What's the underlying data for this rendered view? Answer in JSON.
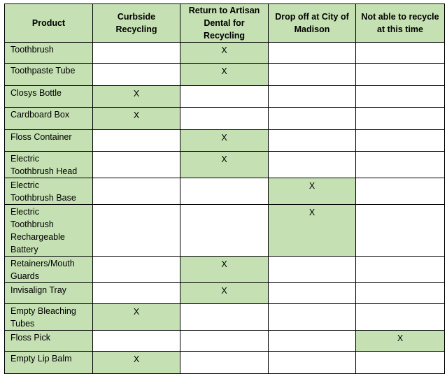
{
  "table": {
    "header": [
      "Product",
      "Curbside Recycling",
      "Return to Artisan Dental for Recycling",
      "Drop off at City of Madison",
      "Not able to recycle at this time"
    ],
    "rows": [
      [
        "Toothbrush",
        null,
        "X",
        null,
        null
      ],
      [
        "Toothpaste Tube",
        null,
        "X",
        null,
        null
      ],
      [
        "Closys Bottle",
        "X",
        null,
        null,
        null
      ],
      [
        "Cardboard Box",
        "X",
        null,
        null,
        null
      ],
      [
        "Floss Container",
        null,
        "X",
        null,
        null
      ],
      [
        "Electric Toothbrush Head",
        null,
        "X",
        null,
        null
      ],
      [
        "Electric Toothbrush Base",
        null,
        null,
        "X",
        null
      ],
      [
        "Electric Toothbrush Rechargeable Battery",
        null,
        null,
        "X",
        null
      ],
      [
        "Retainers/Mouth Guards",
        null,
        "X",
        null,
        null
      ],
      [
        "Invisalign Tray",
        null,
        "X",
        null,
        null
      ],
      [
        "Empty Bleaching Tubes",
        "X",
        null,
        null,
        null
      ],
      [
        "Floss Pick",
        null,
        null,
        null,
        "X"
      ],
      [
        "Empty Lip Balm",
        "X",
        null,
        null,
        null
      ]
    ]
  }
}
